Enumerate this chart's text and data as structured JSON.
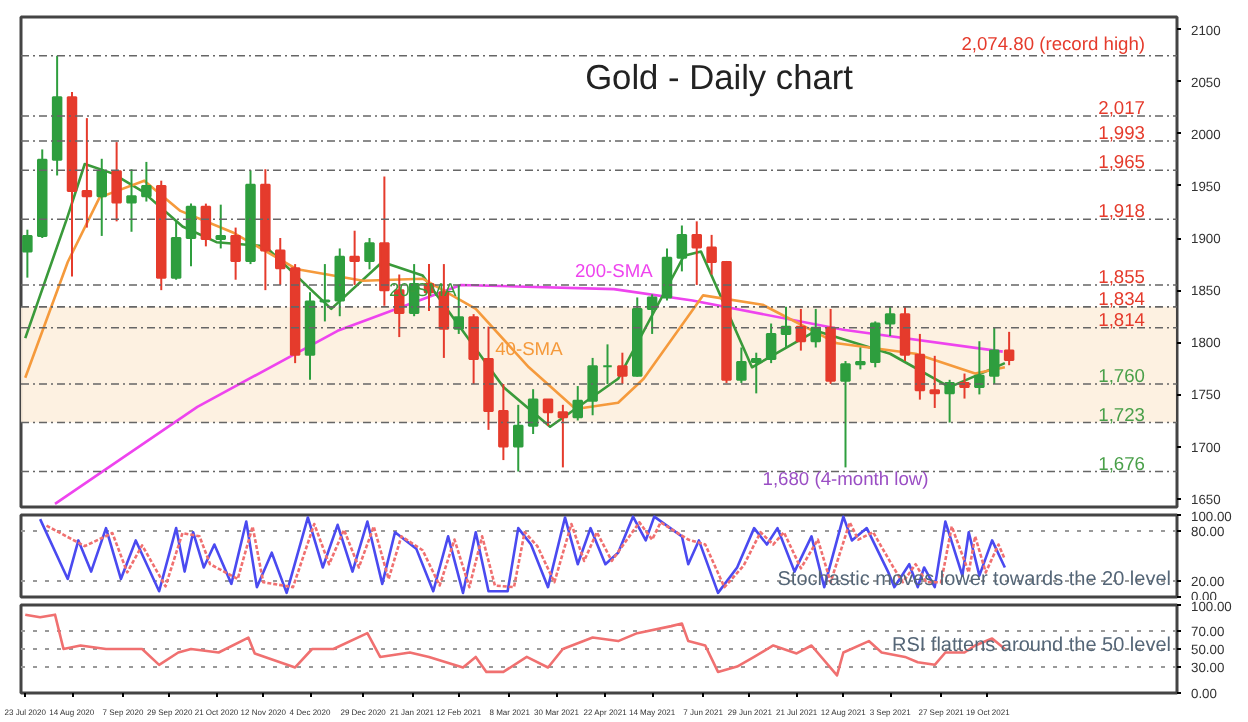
{
  "chart_data": [
    {
      "type": "candlestick",
      "title": "Gold - Daily chart",
      "tick_labels": "y",
      "x": [
        "2020-07-24",
        "2020-07-31",
        "2020-08-07",
        "2020-08-14",
        "2020-08-21",
        "2020-08-28",
        "2020-09-04",
        "2020-09-11",
        "2020-09-18",
        "2020-09-25",
        "2020-10-02",
        "2020-10-09",
        "2020-10-16",
        "2020-10-23",
        "2020-10-30",
        "2020-11-06",
        "2020-11-13",
        "2020-11-20",
        "2020-11-27",
        "2020-12-04",
        "2020-12-11",
        "2020-12-18",
        "2020-12-25",
        "2021-01-01",
        "2021-01-08",
        "2021-01-15",
        "2021-01-22",
        "2021-01-29",
        "2021-02-05",
        "2021-02-12",
        "2021-02-19",
        "2021-02-26",
        "2021-03-05",
        "2021-03-12",
        "2021-03-19",
        "2021-03-26",
        "2021-04-02",
        "2021-04-09",
        "2021-04-16",
        "2021-04-23",
        "2021-04-30",
        "2021-05-07",
        "2021-05-14",
        "2021-05-21",
        "2021-05-28",
        "2021-06-04",
        "2021-06-11",
        "2021-06-18",
        "2021-06-25",
        "2021-07-02",
        "2021-07-09",
        "2021-07-16",
        "2021-07-23",
        "2021-07-30",
        "2021-08-06",
        "2021-08-13",
        "2021-08-20",
        "2021-08-27",
        "2021-09-03",
        "2021-09-10",
        "2021-09-17",
        "2021-09-24",
        "2021-10-01",
        "2021-10-08",
        "2021-10-15",
        "2021-10-22",
        "2021-10-29"
      ],
      "ohlc": [
        [
          1887,
          1908,
          1862,
          1902
        ],
        [
          1902,
          1985,
          1900,
          1975
        ],
        [
          1975,
          2074.8,
          1960,
          2035
        ],
        [
          2035,
          2040,
          1863,
          1945
        ],
        [
          1945,
          2015,
          1910,
          1940
        ],
        [
          1940,
          1976,
          1902,
          1964
        ],
        [
          1964,
          1992,
          1916,
          1934
        ],
        [
          1934,
          1966,
          1906,
          1940
        ],
        [
          1940,
          1973,
          1935,
          1950
        ],
        [
          1950,
          1955,
          1850,
          1862
        ],
        [
          1862,
          1917,
          1860,
          1900
        ],
        [
          1900,
          1933,
          1873,
          1930
        ],
        [
          1930,
          1933,
          1892,
          1899
        ],
        [
          1899,
          1932,
          1890,
          1902
        ],
        [
          1902,
          1910,
          1860,
          1878
        ],
        [
          1878,
          1965,
          1875,
          1951
        ],
        [
          1951,
          1966,
          1850,
          1888
        ],
        [
          1888,
          1900,
          1855,
          1871
        ],
        [
          1871,
          1875,
          1780,
          1788
        ],
        [
          1788,
          1848,
          1764,
          1839
        ],
        [
          1839,
          1875,
          1820,
          1840
        ],
        [
          1840,
          1890,
          1825,
          1882
        ],
        [
          1882,
          1907,
          1855,
          1878
        ],
        [
          1878,
          1900,
          1870,
          1895
        ],
        [
          1895,
          1959,
          1835,
          1850
        ],
        [
          1850,
          1865,
          1805,
          1828
        ],
        [
          1828,
          1875,
          1825,
          1856
        ],
        [
          1856,
          1875,
          1830,
          1848
        ],
        [
          1848,
          1875,
          1785,
          1813
        ],
        [
          1813,
          1855,
          1808,
          1824
        ],
        [
          1824,
          1827,
          1760,
          1784
        ],
        [
          1784,
          1815,
          1716,
          1734
        ],
        [
          1734,
          1760,
          1687,
          1700
        ],
        [
          1700,
          1740,
          1676,
          1720
        ],
        [
          1720,
          1755,
          1712,
          1745
        ],
        [
          1745,
          1745,
          1720,
          1733
        ],
        [
          1733,
          1740,
          1680,
          1728
        ],
        [
          1728,
          1758,
          1725,
          1744
        ],
        [
          1744,
          1785,
          1730,
          1777
        ],
        [
          1777,
          1798,
          1760,
          1777
        ],
        [
          1777,
          1790,
          1760,
          1768
        ],
        [
          1768,
          1843,
          1767,
          1832
        ],
        [
          1832,
          1846,
          1808,
          1843
        ],
        [
          1843,
          1890,
          1840,
          1881
        ],
        [
          1881,
          1912,
          1868,
          1903
        ],
        [
          1903,
          1916,
          1855,
          1891
        ],
        [
          1891,
          1903,
          1865,
          1877
        ],
        [
          1877,
          1878,
          1761,
          1764
        ],
        [
          1764,
          1795,
          1761,
          1781
        ],
        [
          1781,
          1790,
          1751,
          1784
        ],
        [
          1784,
          1818,
          1780,
          1808
        ],
        [
          1808,
          1834,
          1795,
          1815
        ],
        [
          1815,
          1832,
          1792,
          1801
        ],
        [
          1801,
          1832,
          1795,
          1814
        ],
        [
          1814,
          1832,
          1760,
          1763
        ],
        [
          1763,
          1782,
          1680,
          1779
        ],
        [
          1779,
          1795,
          1774,
          1781
        ],
        [
          1781,
          1820,
          1776,
          1818
        ],
        [
          1818,
          1834,
          1806,
          1827
        ],
        [
          1827,
          1834,
          1782,
          1788
        ],
        [
          1788,
          1808,
          1745,
          1754
        ],
        [
          1754,
          1787,
          1737,
          1751
        ],
        [
          1751,
          1764,
          1723,
          1761
        ],
        [
          1761,
          1770,
          1746,
          1757
        ],
        [
          1757,
          1801,
          1750,
          1768
        ],
        [
          1768,
          1814,
          1760,
          1792
        ],
        [
          1792,
          1810,
          1778,
          1783
        ]
      ],
      "colors": [
        "#2e9e3e",
        "#2e9e3e",
        "#2e9e3e",
        "#e53b2c",
        "#e53b2c",
        "#2e9e3e",
        "#e53b2c",
        "#2e9e3e",
        "#2e9e3e",
        "#e53b2c",
        "#2e9e3e",
        "#2e9e3e",
        "#e53b2c",
        "#2e9e3e",
        "#e53b2c",
        "#2e9e3e",
        "#e53b2c",
        "#e53b2c",
        "#e53b2c",
        "#2e9e3e",
        "#2e9e3e",
        "#2e9e3e",
        "#e53b2c",
        "#2e9e3e",
        "#e53b2c",
        "#e53b2c",
        "#2e9e3e",
        "#e53b2c",
        "#e53b2c",
        "#2e9e3e",
        "#e53b2c",
        "#e53b2c",
        "#e53b2c",
        "#2e9e3e",
        "#2e9e3e",
        "#e53b2c",
        "#e53b2c",
        "#2e9e3e",
        "#2e9e3e",
        "#2e9e3e",
        "#e53b2c",
        "#2e9e3e",
        "#2e9e3e",
        "#2e9e3e",
        "#2e9e3e",
        "#e53b2c",
        "#e53b2c",
        "#e53b2c",
        "#2e9e3e",
        "#2e9e3e",
        "#2e9e3e",
        "#2e9e3e",
        "#e53b2c",
        "#2e9e3e",
        "#e53b2c",
        "#2e9e3e",
        "#2e9e3e",
        "#2e9e3e",
        "#2e9e3e",
        "#e53b2c",
        "#e53b2c",
        "#e53b2c",
        "#2e9e3e",
        "#e53b2c",
        "#2e9e3e",
        "#2e9e3e",
        "#e53b2c"
      ],
      "series": [
        {
          "type": "line",
          "name": "200-SMA",
          "color": "#ee44ee",
          "x": [
            "2020-08-06",
            "2020-10-12",
            "2020-12-17",
            "2021-02-13",
            "2021-04-26",
            "2021-06-02",
            "2021-08-12",
            "2021-10-26"
          ],
          "values": [
            1645,
            1738,
            1811,
            1855,
            1851,
            1840,
            1812,
            1791
          ]
        },
        {
          "type": "line",
          "name": "20-SMA",
          "color": "#3a9a3a",
          "x": [
            "2020-07-23",
            "2020-08-12",
            "2020-08-20",
            "2020-09-02",
            "2020-09-16",
            "2020-10-05",
            "2020-10-21",
            "2020-11-13",
            "2020-12-14",
            "2021-01-07",
            "2021-01-26",
            "2021-03-05",
            "2021-03-27",
            "2021-04-28",
            "2021-05-29",
            "2021-06-06",
            "2021-06-30",
            "2021-07-30",
            "2021-09-03",
            "2021-10-01",
            "2021-10-27"
          ],
          "values": [
            1804,
            1921,
            1971,
            1962,
            1945,
            1911,
            1896,
            1892,
            1832,
            1877,
            1864,
            1757,
            1719,
            1765,
            1883,
            1887,
            1776,
            1811,
            1789,
            1757,
            1780
          ]
        },
        {
          "type": "line",
          "name": "40-SMA",
          "color": "#f59a3c",
          "x": [
            "2020-07-23",
            "2020-08-12",
            "2020-08-27",
            "2020-09-17",
            "2020-10-04",
            "2020-10-29",
            "2020-11-28",
            "2020-12-29",
            "2021-01-26",
            "2021-02-20",
            "2021-03-17",
            "2021-04-08",
            "2021-04-28",
            "2021-05-10",
            "2021-06-07",
            "2021-07-05",
            "2021-08-09",
            "2021-09-15",
            "2021-10-13",
            "2021-10-27"
          ],
          "values": [
            1766,
            1877,
            1939,
            1955,
            1926,
            1905,
            1870,
            1859,
            1861,
            1832,
            1776,
            1736,
            1742,
            1765,
            1845,
            1836,
            1799,
            1789,
            1770,
            1776
          ]
        }
      ],
      "xlim": [
        "2020-07-21",
        "2022-01-16"
      ],
      "ylim": [
        1642,
        2112
      ],
      "ref_lines": [
        {
          "axis": "y",
          "value": 2074.8,
          "label": "2,074.80 (record high)"
        },
        {
          "axis": "y",
          "value": 2017,
          "label": "2,017"
        },
        {
          "axis": "y",
          "value": 1993,
          "label": "1,993"
        },
        {
          "axis": "y",
          "value": 1965,
          "label": "1,965"
        },
        {
          "axis": "y",
          "value": 1918,
          "label": "1,918"
        },
        {
          "axis": "y",
          "value": 1855,
          "label": "1,855"
        },
        {
          "axis": "y",
          "value": 1834,
          "label": "1,834"
        },
        {
          "axis": "y",
          "value": 1814,
          "label": "1,814"
        },
        {
          "axis": "y",
          "value": 1760,
          "label": "1,760"
        },
        {
          "axis": "y",
          "value": 1723,
          "label": "1,723"
        },
        {
          "axis": "y",
          "value": 1676,
          "label": "1,676"
        }
      ],
      "bands": [
        {
          "axis": "y",
          "from": 1723,
          "to": 1834,
          "color": "#fdf0de"
        }
      ],
      "yticks": [
        1650,
        1700,
        1750,
        1800,
        1850,
        1900,
        1950,
        2000,
        2050,
        2100
      ],
      "annotations": [
        {
          "text": "1,680 (4-month low)",
          "x": "2021-08-13",
          "y": 1680
        }
      ]
    },
    {
      "type": "line",
      "tick_labels": "y",
      "grid": "y",
      "series": [
        {
          "color": "#4a4af0",
          "line_style": "solid",
          "x": [
            "2020-07-30",
            "2020-08-12",
            "2020-08-17",
            "2020-08-23",
            "2020-08-30",
            "2020-09-06",
            "2020-09-13",
            "2020-09-24",
            "2020-10-02",
            "2020-10-06",
            "2020-10-10",
            "2020-10-15",
            "2020-10-20",
            "2020-10-28",
            "2020-11-04",
            "2020-11-09",
            "2020-11-16",
            "2020-11-23",
            "2020-12-03",
            "2020-12-10",
            "2020-12-17",
            "2020-12-24",
            "2020-12-31",
            "2021-01-07",
            "2021-01-13",
            "2021-01-23",
            "2021-01-31",
            "2021-02-07",
            "2021-02-14",
            "2021-02-20",
            "2021-02-26",
            "2021-03-07",
            "2021-03-12",
            "2021-03-18",
            "2021-03-26",
            "2021-04-03",
            "2021-04-09",
            "2021-04-15",
            "2021-04-22",
            "2021-04-28",
            "2021-05-05",
            "2021-05-11",
            "2021-05-15",
            "2021-05-28",
            "2021-05-31",
            "2021-06-05",
            "2021-06-14",
            "2021-06-23",
            "2021-07-01",
            "2021-07-07",
            "2021-07-12",
            "2021-07-20",
            "2021-07-28",
            "2021-08-03",
            "2021-08-12",
            "2021-08-16",
            "2021-08-23",
            "2021-09-02",
            "2021-09-05",
            "2021-09-12",
            "2021-09-16",
            "2021-09-19",
            "2021-09-24",
            "2021-09-29",
            "2021-10-07",
            "2021-10-10",
            "2021-10-15",
            "2021-10-21",
            "2021-10-27"
          ],
          "values": [
            95,
            22,
            69,
            31,
            84,
            22,
            69,
            7,
            84,
            31,
            79,
            36,
            64,
            16,
            92,
            12,
            54,
            5,
            97,
            36,
            88,
            31,
            92,
            16,
            79,
            59,
            7,
            74,
            5,
            79,
            7,
            7,
            84,
            64,
            12,
            97,
            40,
            84,
            40,
            54,
            98,
            69,
            98,
            74,
            40,
            69,
            5,
            36,
            84,
            64,
            84,
            31,
            74,
            12,
            98,
            69,
            84,
            31,
            12,
            40,
            12,
            36,
            12,
            92,
            26,
            79,
            26,
            69,
            36
          ]
        },
        {
          "color": "#f07070",
          "line_style": "dotted",
          "x": [
            "2020-08-02",
            "2020-08-20",
            "2020-09-02",
            "2020-09-09",
            "2020-09-16",
            "2020-09-27",
            "2020-10-05",
            "2020-10-13",
            "2020-10-18",
            "2020-10-31",
            "2020-11-07",
            "2020-11-12",
            "2020-11-26",
            "2020-12-06",
            "2020-12-13",
            "2020-12-20",
            "2020-12-27",
            "2021-01-03",
            "2021-01-10",
            "2021-01-16",
            "2021-01-26",
            "2021-02-03",
            "2021-02-10",
            "2021-02-17",
            "2021-02-23",
            "2021-03-01",
            "2021-03-10",
            "2021-03-15",
            "2021-03-21",
            "2021-03-29",
            "2021-04-06",
            "2021-04-12",
            "2021-04-18",
            "2021-04-25",
            "2021-05-08",
            "2021-05-14",
            "2021-05-18",
            "2021-05-31",
            "2021-06-08",
            "2021-06-17",
            "2021-06-26",
            "2021-07-04",
            "2021-07-10",
            "2021-07-15",
            "2021-07-23",
            "2021-07-31",
            "2021-08-06",
            "2021-08-15",
            "2021-08-19",
            "2021-08-26",
            "2021-09-05",
            "2021-09-09",
            "2021-09-15",
            "2021-09-20",
            "2021-09-27",
            "2021-10-02",
            "2021-10-10",
            "2021-10-13",
            "2021-10-18",
            "2021-10-24",
            "2021-10-27"
          ],
          "values": [
            87,
            62,
            78,
            30,
            63,
            13,
            78,
            74,
            40,
            22,
            86,
            18,
            12,
            89,
            40,
            82,
            36,
            86,
            22,
            74,
            57,
            14,
            70,
            12,
            74,
            14,
            12,
            79,
            62,
            18,
            89,
            44,
            79,
            44,
            91,
            70,
            91,
            70,
            64,
            12,
            38,
            79,
            64,
            79,
            35,
            70,
            18,
            91,
            70,
            79,
            34,
            18,
            40,
            18,
            18,
            86,
            30,
            74,
            30,
            64,
            46
          ]
        }
      ],
      "xlim": [
        "2020-07-21",
        "2022-01-16"
      ],
      "ylim": [
        0,
        100
      ],
      "yticks": [
        {
          "value": 0,
          "label": "0.00"
        },
        {
          "value": 20,
          "label": "20.00"
        },
        {
          "value": 80,
          "label": "80.00"
        },
        {
          "value": 100,
          "label": "100.00"
        }
      ],
      "annotations": [
        "Stochastic moves lower towards the 20 level"
      ]
    },
    {
      "type": "line",
      "grid": "y",
      "series": [
        {
          "color": "#f07070",
          "line_style": "solid",
          "x": [
            "2020-07-23",
            "2020-07-30",
            "2020-08-06",
            "2020-08-10",
            "2020-08-18",
            "2020-08-30",
            "2020-09-16",
            "2020-09-24",
            "2020-10-03",
            "2020-10-09",
            "2020-10-22",
            "2020-11-05",
            "2020-11-08",
            "2020-11-27",
            "2020-12-05",
            "2020-12-15",
            "2020-12-31",
            "2021-01-06",
            "2021-01-20",
            "2021-01-29",
            "2021-02-14",
            "2021-02-20",
            "2021-02-25",
            "2021-03-05",
            "2021-03-16",
            "2021-03-26",
            "2021-04-02",
            "2021-04-16",
            "2021-04-28",
            "2021-05-07",
            "2021-05-23",
            "2021-05-28",
            "2021-05-31",
            "2021-06-08",
            "2021-06-14",
            "2021-06-23",
            "2021-07-01",
            "2021-07-10",
            "2021-07-21",
            "2021-07-28",
            "2021-08-09",
            "2021-08-12",
            "2021-08-24",
            "2021-08-30",
            "2021-09-10",
            "2021-09-16",
            "2021-09-24",
            "2021-09-29",
            "2021-10-08",
            "2021-10-13",
            "2021-10-21",
            "2021-10-27"
          ],
          "values": [
            89,
            86,
            89,
            50,
            54,
            50,
            50,
            32,
            46,
            50,
            46,
            63,
            45,
            29,
            50,
            50,
            68,
            41,
            46,
            41,
            29,
            41,
            24,
            24,
            41,
            29,
            50,
            63,
            59,
            68,
            76,
            79,
            59,
            54,
            24,
            30,
            41,
            54,
            45,
            54,
            20,
            46,
            59,
            46,
            41,
            35,
            32,
            46,
            46,
            54,
            62,
            50
          ]
        }
      ],
      "xlim": [
        "2020-07-21",
        "2022-01-16"
      ],
      "ylim": [
        0,
        100
      ],
      "yticks": [
        {
          "value": 0,
          "label": "0.00"
        },
        {
          "value": 30,
          "label": "30.00"
        },
        {
          "value": 50,
          "label": "50.00"
        },
        {
          "value": 70,
          "label": "70.00"
        },
        {
          "value": 100,
          "label": "100.00"
        }
      ],
      "xticks": [
        {
          "value": "2020-07-23",
          "label": "23 Jul 2020"
        },
        {
          "value": "2020-08-14",
          "label": "14 Aug 2020"
        },
        {
          "value": "2020-09-07",
          "label": "7 Sep 2020"
        },
        {
          "value": "2020-09-29",
          "label": "29 Sep 2020"
        },
        {
          "value": "2020-10-21",
          "label": "21 Oct 2020"
        },
        {
          "value": "2020-11-12",
          "label": "12 Nov 2020"
        },
        {
          "value": "2020-12-04",
          "label": "4 Dec 2020"
        },
        {
          "value": "2020-12-29",
          "label": "29 Dec 2020"
        },
        {
          "value": "2021-01-21",
          "label": "21 Jan 2021"
        },
        {
          "value": "2021-02-12",
          "label": "12 Feb 2021"
        },
        {
          "value": "2021-03-08",
          "label": "8 Mar 2021"
        },
        {
          "value": "2021-03-30",
          "label": "30 Mar 2021"
        },
        {
          "value": "2021-04-22",
          "label": "22 Apr 2021"
        },
        {
          "value": "2021-05-14",
          "label": "14 May 2021"
        },
        {
          "value": "2021-06-07",
          "label": "7 Jun 2021"
        },
        {
          "value": "2021-06-29",
          "label": "29 Jun 2021"
        },
        {
          "value": "2021-07-21",
          "label": "21 Jul 2021"
        },
        {
          "value": "2021-08-12",
          "label": "12 Aug 2021"
        },
        {
          "value": "2021-09-03",
          "label": "3 Sep 2021"
        },
        {
          "value": "2021-09-27",
          "label": "27 Sep 2021"
        },
        {
          "value": "2021-10-19",
          "label": "19 Oct 2021"
        }
      ],
      "annotations": [
        "RSI flattens around the 50 level"
      ]
    }
  ]
}
